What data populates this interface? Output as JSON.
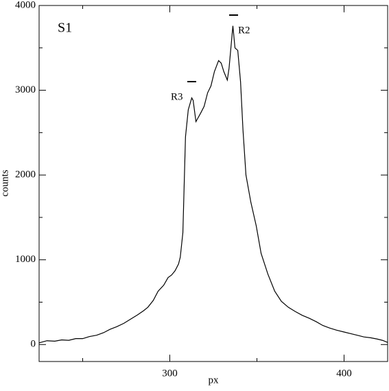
{
  "chart_data": {
    "type": "line",
    "x_label": "px",
    "y_label": "counts",
    "annotations": [
      "S1",
      "R3",
      "R2"
    ],
    "xlim": [
      225,
      425
    ],
    "ylim": [
      -200,
      4000
    ],
    "xticks": [
      300,
      400
    ],
    "x_minor_ticks": [
      250,
      350
    ],
    "yticks": [
      0,
      1000,
      2000,
      3000,
      4000
    ],
    "y_minor_ticks": [
      500,
      1500,
      2500,
      3500
    ],
    "series": [
      {
        "color": "#000000",
        "x": [
          225,
          229.5,
          234,
          238,
          242,
          246,
          250,
          254,
          258,
          262,
          265.7,
          269.5,
          273.6,
          277.5,
          281.5,
          285,
          287.4,
          290.5,
          293.3,
          296.5,
          299,
          301,
          303,
          305,
          306,
          307.5,
          309,
          310.6,
          312.6,
          313.4,
          315,
          317.7,
          319.7,
          321.7,
          323.6,
          325.6,
          328,
          329.5,
          331,
          333,
          334,
          336.2,
          337.4,
          339,
          340.6,
          342,
          343.7,
          346.5,
          349.6,
          352.4,
          356.3,
          360.2,
          364,
          368,
          372,
          376,
          380,
          384,
          387.8,
          391.7,
          395.7,
          399.6,
          403.5,
          407.5,
          411.4,
          415.2,
          419,
          422,
          425
        ],
        "values": [
          20,
          45,
          40,
          55,
          50,
          70,
          70,
          95,
          110,
          140,
          180,
          210,
          250,
          300,
          350,
          400,
          440,
          520,
          630,
          700,
          790,
          820,
          870,
          950,
          1030,
          1320,
          2450,
          2770,
          2910,
          2880,
          2630,
          2730,
          2810,
          2970,
          3050,
          3220,
          3350,
          3320,
          3220,
          3120,
          3260,
          3760,
          3500,
          3470,
          3100,
          2530,
          2000,
          1680,
          1400,
          1075,
          830,
          630,
          510,
          440,
          390,
          345,
          310,
          270,
          225,
          195,
          170,
          150,
          130,
          110,
          90,
          80,
          65,
          50,
          25
        ]
      }
    ]
  }
}
